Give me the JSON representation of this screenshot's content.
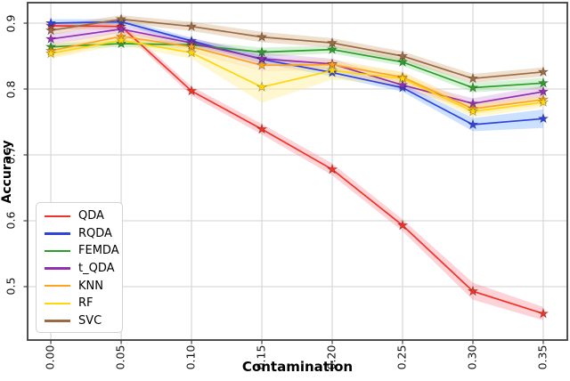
{
  "figure": {
    "background": "#ffffff",
    "spine_color": "#3d3d3d",
    "grid_color": "#dadada",
    "tick_color": "#444444"
  },
  "chart_data": {
    "type": "line",
    "title": "",
    "xlabel": "Contamination",
    "ylabel": "Accuracy",
    "grid": true,
    "legend_position": "lower-left",
    "marker": "star",
    "x": [
      0.0,
      0.05,
      0.1,
      0.15,
      0.2,
      0.25,
      0.3,
      0.35
    ],
    "xticks": [
      "0.00",
      "0.05",
      "0.10",
      "0.15",
      "0.20",
      "0.25",
      "0.30",
      "0.35"
    ],
    "yticks": [
      "0.5",
      "0.6",
      "0.7",
      "0.8",
      "0.9"
    ],
    "ytick_values": [
      0.5,
      0.6,
      0.7,
      0.8,
      0.9
    ],
    "xlim": [
      -0.0165,
      0.3671
    ],
    "ylim": [
      0.4189,
      0.9311
    ],
    "series": [
      {
        "name": "QDA",
        "color": "#f03328",
        "band_color": "rgba(248,118,130,0.32)",
        "values": [
          0.896,
          0.895,
          0.797,
          0.739,
          0.678,
          0.593,
          0.493,
          0.459
        ],
        "band": [
          0.005,
          0.005,
          0.007,
          0.008,
          0.009,
          0.009,
          0.013,
          0.01
        ]
      },
      {
        "name": "RQDA",
        "color": "#3042dd",
        "band_color": "rgba(110,165,255,0.35)",
        "values": [
          0.9,
          0.902,
          0.873,
          0.845,
          0.825,
          0.802,
          0.746,
          0.755
        ],
        "band": [
          0.006,
          0.004,
          0.005,
          0.006,
          0.006,
          0.006,
          0.01,
          0.014
        ]
      },
      {
        "name": "FEMDA",
        "color": "#2b9e2b",
        "band_color": "rgba(130,215,130,0.32)",
        "values": [
          0.864,
          0.869,
          0.867,
          0.856,
          0.86,
          0.841,
          0.802,
          0.809
        ],
        "band": [
          0.005,
          0.005,
          0.006,
          0.007,
          0.006,
          0.006,
          0.007,
          0.008
        ]
      },
      {
        "name": "t_QDA",
        "color": "#9330ae",
        "band_color": "rgba(200,130,220,0.30)",
        "values": [
          0.876,
          0.891,
          0.87,
          0.846,
          0.838,
          0.806,
          0.778,
          0.796
        ],
        "band": [
          0.008,
          0.006,
          0.007,
          0.009,
          0.008,
          0.007,
          0.008,
          0.009
        ]
      },
      {
        "name": "KNN",
        "color": "#ffa21f",
        "band_color": "rgba(255,200,120,0.32)",
        "values": [
          0.858,
          0.88,
          0.864,
          0.836,
          0.837,
          0.818,
          0.77,
          0.784
        ],
        "band": [
          0.01,
          0.008,
          0.008,
          0.009,
          0.008,
          0.008,
          0.008,
          0.008
        ]
      },
      {
        "name": "RF",
        "color": "#ffd60a",
        "band_color": "rgba(255,236,140,0.42)",
        "values": [
          0.854,
          0.874,
          0.855,
          0.803,
          0.828,
          0.816,
          0.766,
          0.78
        ],
        "band": [
          0.008,
          0.007,
          0.009,
          0.024,
          0.014,
          0.009,
          0.009,
          0.008
        ]
      },
      {
        "name": "SVC",
        "color": "#9c6a44",
        "band_color": "rgba(210,172,130,0.38)",
        "values": [
          0.889,
          0.906,
          0.895,
          0.879,
          0.87,
          0.85,
          0.816,
          0.826
        ],
        "band": [
          0.007,
          0.006,
          0.007,
          0.008,
          0.007,
          0.007,
          0.007,
          0.007
        ]
      }
    ]
  }
}
